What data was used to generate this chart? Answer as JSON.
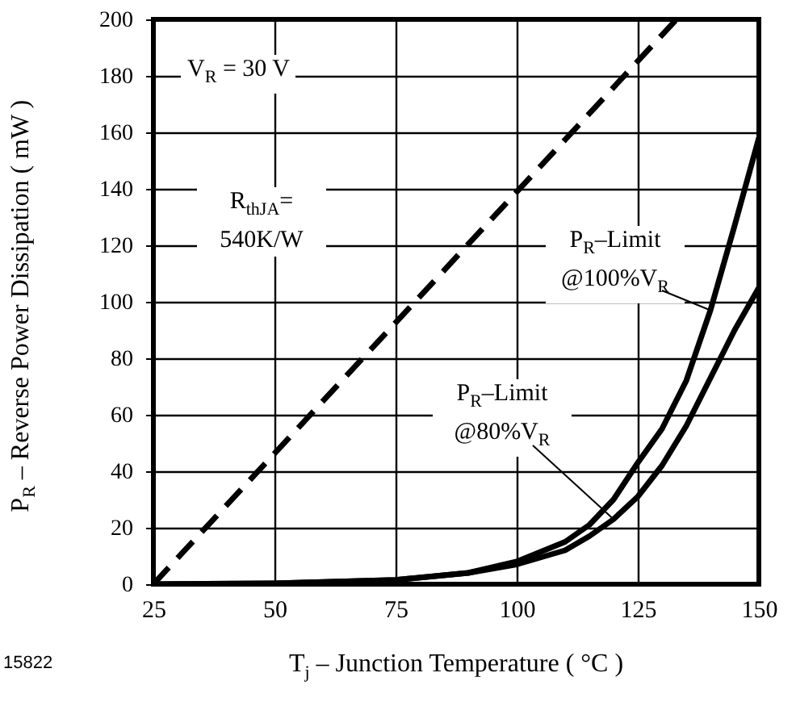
{
  "chart_data": {
    "type": "line",
    "xlabel": "T$_{j}$ – Junction Temperature ( °C )",
    "ylabel": "P$_{R}$ – Reverse Power Dissipation ( mW )",
    "xlim": [
      25,
      150
    ],
    "xticks": [
      25,
      50,
      75,
      100,
      125,
      150
    ],
    "ylim": [
      0,
      200
    ],
    "yticks": [
      0,
      20,
      40,
      60,
      80,
      100,
      120,
      140,
      160,
      180,
      200
    ],
    "grid": true,
    "marker": "none",
    "line_style": "solid",
    "series": [
      {
        "color": "#000000",
        "line_style": "dashed",
        "x": [
          25,
          133
        ],
        "values": [
          0,
          200
        ]
      },
      {
        "color": "#000000",
        "x": [
          25,
          50,
          75,
          90,
          100,
          110,
          115,
          120,
          125,
          130,
          135,
          140,
          145,
          150
        ],
        "values": [
          0,
          0.3,
          1.5,
          4,
          8,
          15,
          21,
          30,
          43,
          55,
          72,
          97,
          127,
          158
        ]
      },
      {
        "color": "#000000",
        "x": [
          25,
          50,
          75,
          90,
          100,
          110,
          115,
          120,
          125,
          130,
          135,
          140,
          145,
          150
        ],
        "values": [
          0,
          0.3,
          1.5,
          4,
          7,
          12,
          17,
          23,
          31,
          42,
          56,
          73,
          90,
          105
        ]
      }
    ],
    "annotations": [
      "V$_{R}$ = 30 V",
      "R$_{thJA}$= 540K/W",
      {
        "text": "P$_{R}$–Limit @100%V$_{R}$",
        "x": 140,
        "y": 97
      },
      {
        "text": "P$_{R}$–Limit @80%V$_{R}$",
        "x": 120,
        "y": 23
      },
      "15822"
    ]
  }
}
